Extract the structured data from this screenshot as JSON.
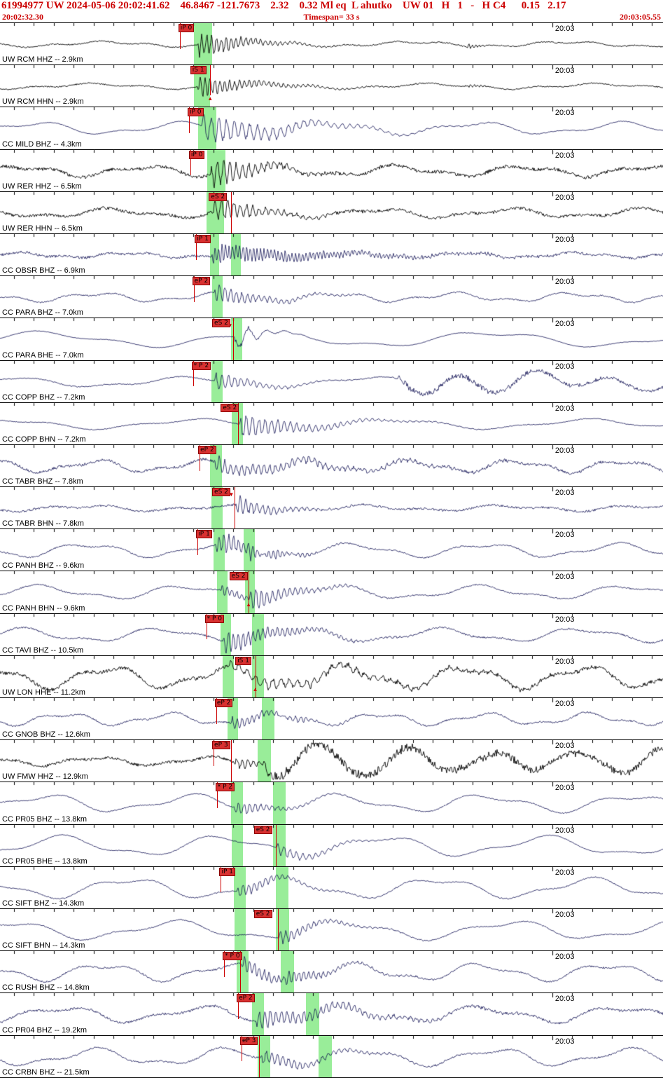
{
  "header": {
    "title": "61994977 UW 2024-05-06 20:02:41.62    46.8467 -121.7673    2.32    0.32 Ml eq  L ahutko    UW 01   H   1   -   H C4      0.15   2.17",
    "start_time": "20:02:32.30",
    "timespan": "Timespan=  33 s",
    "end_time": "20:03:05.55",
    "accent_color": "#cc0000"
  },
  "axis": {
    "minute_label": "20:03",
    "seconds_total": 33.25,
    "first_tick_offset_s": 0.7,
    "minute_mark_s": 27.7
  },
  "colors": {
    "uw_trace": "#000000",
    "cc_trace": "#00004a",
    "pick_red": "#cc0000",
    "flag_bg": "#d93131",
    "flag_border": "#8a0000",
    "band_green": "rgba(110,230,110,0.7)"
  },
  "traces": [
    {
      "station": "UW RCM HHZ -- 2.9km",
      "color": "#000000",
      "pick": {
        "label": "iP 0",
        "x": 0.269
      },
      "lines": [
        [
          0.271,
          0.62
        ]
      ],
      "markers": [],
      "bands": [
        [
          0.292,
          0.32
        ]
      ],
      "wave": {
        "noise": 0.9,
        "lf": [
          [
            3,
            220
          ],
          [
            1.5,
            70
          ]
        ],
        "bursts": [
          [
            0.298,
            17,
            60,
            7
          ],
          [
            0.703,
            4,
            12,
            5
          ]
        ]
      }
    },
    {
      "station": "UW RCM HHN -- 2.9km",
      "color": "#000000",
      "pick": {
        "label": "iS 1",
        "x": 0.287
      },
      "lines": [
        [
          0.317,
          0.72
        ]
      ],
      "markers": [
        [
          0.317,
          44,
          "up"
        ]
      ],
      "bands": [
        [
          0.292,
          0.317
        ]
      ],
      "wave": {
        "noise": 0.9,
        "lf": [
          [
            3,
            240
          ],
          [
            1.5,
            80
          ]
        ],
        "bursts": [
          [
            0.298,
            13,
            75,
            7
          ],
          [
            0.705,
            3.5,
            12,
            5
          ]
        ]
      }
    },
    {
      "station": "CC MILD BHZ -- 4.3km",
      "color": "#00004a",
      "pick": {
        "label": "iP 0",
        "x": 0.283
      },
      "lines": [
        [
          0.285,
          0.62
        ]
      ],
      "markers": [],
      "bands": [
        [
          0.299,
          0.326
        ]
      ],
      "wave": {
        "noise": 0.5,
        "lf": [
          [
            7,
            210
          ],
          [
            3,
            90
          ]
        ],
        "bursts": [
          [
            0.303,
            19,
            110,
            11
          ]
        ]
      }
    },
    {
      "station": "UW RER HHZ -- 6.5km",
      "color": "#000000",
      "pick": {
        "label": "iP 0",
        "x": 0.285
      },
      "lines": [
        [
          0.287,
          0.62
        ]
      ],
      "markers": [],
      "bands": [
        [
          0.313,
          0.34
        ]
      ],
      "wave": {
        "noise": 2.4,
        "lf": [
          [
            6,
            180
          ],
          [
            3,
            80
          ]
        ],
        "bursts": [
          [
            0.317,
            22,
            55,
            9
          ]
        ]
      }
    },
    {
      "station": "UW RER HHN -- 6.5km",
      "color": "#000000",
      "pick": {
        "label": "eS 2",
        "x": 0.315
      },
      "lines": [
        [
          0.348,
          1
        ]
      ],
      "markers": [],
      "bands": [
        [
          0.312,
          0.338
        ]
      ],
      "wave": {
        "noise": 2.2,
        "lf": [
          [
            5,
            190
          ],
          [
            2.5,
            85
          ]
        ],
        "bursts": [
          [
            0.32,
            17,
            60,
            9
          ]
        ]
      }
    },
    {
      "station": "CC OBSR BHZ -- 6.9km",
      "color": "#00004a",
      "pick": {
        "label": "iP 1",
        "x": 0.294
      },
      "lines": [
        [
          0.296,
          0.62
        ]
      ],
      "markers": [],
      "bands": [
        [
          0.317,
          0.331
        ],
        [
          0.348,
          0.363
        ]
      ],
      "wave": {
        "noise": 1.8,
        "lf": [
          [
            3,
            160
          ],
          [
            1.5,
            60
          ]
        ],
        "bursts": [
          [
            0.319,
            12,
            160,
            5
          ]
        ]
      }
    },
    {
      "station": "CC PARA BHZ -- 7.0km",
      "color": "#00004a",
      "pick": {
        "label": "eP 2",
        "x": 0.29
      },
      "lines": [
        [
          0.292,
          0.62
        ]
      ],
      "markers": [],
      "bands": [
        [
          0.32,
          0.336
        ]
      ],
      "wave": {
        "noise": 1.0,
        "lf": [
          [
            5,
            170
          ],
          [
            2.5,
            70
          ]
        ],
        "bursts": [
          [
            0.323,
            12,
            70,
            8
          ]
        ]
      }
    },
    {
      "station": "CC PARA BHE -- 7.0km",
      "color": "#00004a",
      "pick": {
        "label": "eS 2",
        "x": 0.32
      },
      "lines": [
        [
          0.352,
          1
        ]
      ],
      "markers": [
        [
          0.347,
          7,
          "down"
        ]
      ],
      "bands": [
        [
          0.348,
          0.365
        ]
      ],
      "wave": {
        "noise": 0.4,
        "lf": [
          [
            9,
            320
          ],
          [
            3,
            120
          ]
        ],
        "bursts": [
          [
            0.352,
            -22,
            28,
            26
          ]
        ]
      }
    },
    {
      "station": "CC COPP BHZ -- 7.2km",
      "color": "#00004a",
      "pick": {
        "label": "* P 2",
        "x": 0.289
      },
      "lines": [
        [
          0.291,
          0.62
        ]
      ],
      "markers": [],
      "bands": [
        [
          0.319,
          0.336
        ]
      ],
      "wave": {
        "noise": 0.8,
        "lf": [
          [
            6,
            260
          ],
          [
            2,
            100
          ]
        ],
        "bursts": [
          [
            0.323,
            11,
            60,
            9
          ],
          [
            0.6,
            16,
            420,
            110
          ]
        ]
      }
    },
    {
      "station": "CC COPP BHN -- 7.2km",
      "color": "#00004a",
      "pick": {
        "label": "eS 2",
        "x": 0.333
      },
      "lines": [
        [
          0.359,
          1
        ]
      ],
      "markers": [],
      "bands": [
        [
          0.349,
          0.366
        ]
      ],
      "wave": {
        "noise": 0.6,
        "lf": [
          [
            6,
            280
          ],
          [
            2,
            110
          ]
        ],
        "bursts": [
          [
            0.361,
            15,
            90,
            9
          ]
        ]
      }
    },
    {
      "station": "CC TABR BHZ -- 7.8km",
      "color": "#00004a",
      "pick": {
        "label": "eP 2",
        "x": 0.299
      },
      "lines": [
        [
          0.301,
          0.62
        ]
      ],
      "markers": [],
      "bands": [
        [
          0.317,
          0.335
        ]
      ],
      "wave": {
        "noise": 1.9,
        "lf": [
          [
            7,
            150
          ],
          [
            3,
            70
          ]
        ],
        "bursts": [
          [
            0.322,
            9,
            170,
            8
          ]
        ]
      }
    },
    {
      "station": "CC TABR BHN -- 7.8km",
      "color": "#00004a",
      "pick": {
        "label": "eS 2",
        "x": 0.32
      },
      "lines": [
        [
          0.354,
          1
        ]
      ],
      "markers": [
        [
          0.349,
          7,
          "down"
        ]
      ],
      "bands": [
        [
          0.319,
          0.336
        ]
      ],
      "wave": {
        "noise": 1.5,
        "lf": [
          [
            3,
            200
          ],
          [
            2,
            90
          ]
        ],
        "bursts": [
          [
            0.355,
            12,
            55,
            8
          ]
        ]
      }
    },
    {
      "station": "CC PANH BHZ -- 9.6km",
      "color": "#00004a",
      "pick": {
        "label": "iP 1",
        "x": 0.296
      },
      "lines": [
        [
          0.298,
          0.62
        ]
      ],
      "markers": [],
      "bands": [
        [
          0.322,
          0.339
        ],
        [
          0.367,
          0.384
        ]
      ],
      "wave": {
        "noise": 1.0,
        "lf": [
          [
            8,
            190
          ],
          [
            3,
            80
          ]
        ],
        "bursts": [
          [
            0.325,
            14,
            60,
            7
          ],
          [
            0.372,
            7,
            45,
            6
          ]
        ]
      }
    },
    {
      "station": "CC PANH BHN -- 9.6km",
      "color": "#00004a",
      "pick": {
        "label": "eS 2",
        "x": 0.346
      },
      "lines": [
        [
          0.375,
          1
        ]
      ],
      "markers": [
        [
          0.375,
          44,
          "up"
        ]
      ],
      "bands": [
        [
          0.327,
          0.343
        ],
        [
          0.37,
          0.384
        ]
      ],
      "wave": {
        "noise": 1.0,
        "lf": [
          [
            8,
            210
          ],
          [
            3,
            90
          ]
        ],
        "bursts": [
          [
            0.332,
            7,
            45,
            7
          ],
          [
            0.375,
            14,
            60,
            8
          ]
        ]
      }
    },
    {
      "station": "CC TAVI BHZ -- 10.5km",
      "color": "#00004a",
      "pick": {
        "label": "* P 0",
        "x": 0.309
      },
      "lines": [
        [
          0.311,
          0.62
        ]
      ],
      "markers": [],
      "bands": [
        [
          0.333,
          0.349
        ],
        [
          0.38,
          0.398
        ]
      ],
      "wave": {
        "noise": 1.2,
        "lf": [
          [
            8,
            200
          ],
          [
            3,
            85
          ]
        ],
        "bursts": [
          [
            0.336,
            14,
            85,
            7
          ]
        ]
      }
    },
    {
      "station": "UW LON HHE -- 11.2km",
      "color": "#000000",
      "pick": {
        "label": "iS 1",
        "x": 0.355
      },
      "lines": [
        [
          0.385,
          1
        ]
      ],
      "markers": [
        [
          0.385,
          44,
          "up"
        ]
      ],
      "bands": [
        [
          0.336,
          0.353
        ],
        [
          0.38,
          0.398
        ]
      ],
      "wave": {
        "noise": 2.6,
        "lf": [
          [
            13,
            170
          ],
          [
            5,
            75
          ]
        ],
        "bursts": [
          [
            0.345,
            7,
            250,
            12
          ]
        ]
      }
    },
    {
      "station": "CC GNOB BHZ -- 12.6km",
      "color": "#00004a",
      "pick": {
        "label": "eP 2",
        "x": 0.324
      },
      "lines": [
        [
          0.326,
          0.62
        ]
      ],
      "markers": [],
      "bands": [
        [
          0.343,
          0.359
        ],
        [
          0.395,
          0.414
        ]
      ],
      "wave": {
        "noise": 1.2,
        "lf": [
          [
            7,
            150
          ],
          [
            3,
            65
          ]
        ],
        "bursts": [
          [
            0.347,
            8,
            60,
            7
          ],
          [
            0.42,
            4,
            60,
            8
          ]
        ]
      }
    },
    {
      "station": "UW FMW HHZ -- 12.9km",
      "color": "#000000",
      "pick": {
        "label": "eP 3",
        "x": 0.32
      },
      "lines": [
        [
          0.322,
          0.62
        ],
        [
          0.348,
          1
        ]
      ],
      "markers": [],
      "bands": [
        [
          0.389,
          0.409
        ]
      ],
      "wave": {
        "noise": 2.0,
        "lf": [
          [
            5,
            160
          ],
          [
            2,
            70
          ]
        ],
        "bursts": [
          [
            0.352,
            6,
            60,
            8
          ],
          [
            0.4,
            20,
            1500,
            125
          ]
        ]
      }
    },
    {
      "station": "CC PR05 BHZ -- 13.8km",
      "color": "#00004a",
      "pick": {
        "label": "* P 2",
        "x": 0.325
      },
      "lines": [
        [
          0.327,
          0.62
        ]
      ],
      "markers": [],
      "bands": [
        [
          0.348,
          0.366
        ],
        [
          0.412,
          0.431
        ]
      ],
      "wave": {
        "noise": 0.8,
        "lf": [
          [
            10,
            210
          ],
          [
            4,
            95
          ]
        ],
        "bursts": [
          [
            0.352,
            9,
            55,
            8
          ]
        ]
      }
    },
    {
      "station": "CC PR05 BHE -- 13.8km",
      "color": "#00004a",
      "pick": {
        "label": "eS 2",
        "x": 0.383
      },
      "lines": [
        [
          0.416,
          1
        ]
      ],
      "markers": [],
      "bands": [
        [
          0.349,
          0.366
        ],
        [
          0.412,
          0.431
        ]
      ],
      "wave": {
        "noise": 0.6,
        "lf": [
          [
            12,
            230
          ],
          [
            4,
            100
          ]
        ],
        "bursts": [
          [
            0.417,
            8,
            60,
            9
          ]
        ]
      }
    },
    {
      "station": "CC SIFT BHZ -- 14.3km",
      "color": "#00004a",
      "pick": {
        "label": "iP 1",
        "x": 0.331
      },
      "lines": [
        [
          0.333,
          0.62
        ]
      ],
      "markers": [],
      "bands": [
        [
          0.353,
          0.371
        ],
        [
          0.416,
          0.435
        ]
      ],
      "wave": {
        "noise": 0.8,
        "lf": [
          [
            12,
            220
          ],
          [
            4,
            90
          ]
        ],
        "bursts": [
          [
            0.357,
            9,
            60,
            8
          ]
        ]
      }
    },
    {
      "station": "CC SIFT BHN -- 14.3km",
      "color": "#00004a",
      "pick": {
        "label": "eS 2",
        "x": 0.383
      },
      "lines": [
        [
          0.419,
          1
        ]
      ],
      "markers": [],
      "bands": [
        [
          0.354,
          0.371
        ],
        [
          0.416,
          0.436
        ]
      ],
      "wave": {
        "noise": 0.8,
        "lf": [
          [
            11,
            240
          ],
          [
            4,
            100
          ]
        ],
        "bursts": [
          [
            0.42,
            9,
            60,
            8
          ]
        ]
      }
    },
    {
      "station": "CC RUSH BHZ -- 14.8km",
      "color": "#00004a",
      "pick": {
        "label": "* P 0",
        "x": 0.336
      },
      "lines": [
        [
          0.338,
          0.62
        ],
        [
          0.362,
          1
        ]
      ],
      "markers": [],
      "bands": [
        [
          0.357,
          0.375
        ],
        [
          0.423,
          0.444
        ]
      ],
      "wave": {
        "noise": 1.2,
        "lf": [
          [
            10,
            180
          ],
          [
            4,
            80
          ]
        ],
        "bursts": [
          [
            0.364,
            11,
            70,
            7
          ],
          [
            0.43,
            5,
            55,
            7
          ]
        ]
      }
    },
    {
      "station": "CC PR04 BHZ -- 19.2km",
      "color": "#00004a",
      "pick": {
        "label": "eP 2",
        "x": 0.357
      },
      "lines": [
        [
          0.359,
          0.62
        ]
      ],
      "markers": [],
      "bands": [
        [
          0.38,
          0.398
        ],
        [
          0.461,
          0.481
        ]
      ],
      "wave": {
        "noise": 1.8,
        "lf": [
          [
            9,
            200
          ],
          [
            4,
            90
          ]
        ],
        "bursts": [
          [
            0.385,
            12,
            130,
            8
          ]
        ]
      }
    },
    {
      "station": "CC CRBN BHZ -- 21.5km",
      "color": "#00004a",
      "pick": {
        "label": "eP 3",
        "x": 0.362
      },
      "lines": [
        [
          0.364,
          0.62
        ],
        [
          0.391,
          1
        ]
      ],
      "markers": [],
      "bands": [
        [
          0.389,
          0.408
        ],
        [
          0.48,
          0.501
        ]
      ],
      "wave": {
        "noise": 1.2,
        "lf": [
          [
            10,
            190
          ],
          [
            4,
            85
          ]
        ],
        "bursts": [
          [
            0.393,
            9,
            90,
            8
          ]
        ]
      }
    }
  ]
}
